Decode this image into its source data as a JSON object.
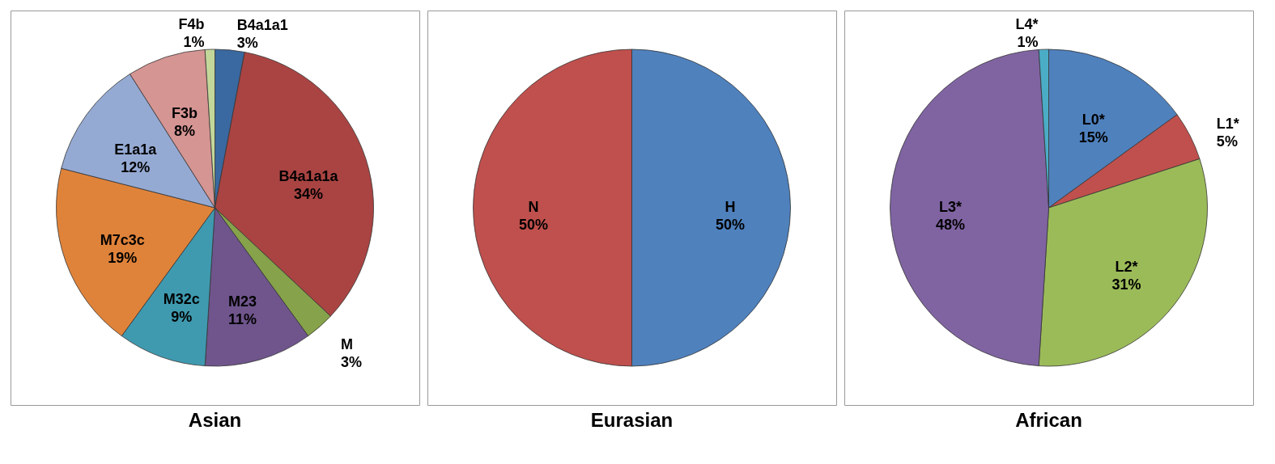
{
  "chart_data": [
    {
      "type": "pie",
      "title": "Asian",
      "categories": [
        "B4a1a1",
        "B4a1a1a",
        "M",
        "M23",
        "M32c",
        "M7c3c",
        "E1a1a",
        "F3b",
        "F4b"
      ],
      "values": [
        3,
        34,
        3,
        11,
        9,
        19,
        12,
        8,
        1
      ],
      "value_labels": [
        "3%",
        "34%",
        "3%",
        "11%",
        "9%",
        "19%",
        "12%",
        "8%",
        "1%"
      ],
      "colors": [
        "#3a68a0",
        "#a94442",
        "#86a24a",
        "#6f558c",
        "#3f9ab0",
        "#e0833a",
        "#95aad3",
        "#d59593",
        "#c4d79b"
      ]
    },
    {
      "type": "pie",
      "title": "Eurasian",
      "categories": [
        "H",
        "N"
      ],
      "values": [
        50,
        50
      ],
      "value_labels": [
        "50%",
        "50%"
      ],
      "colors": [
        "#4f81bd",
        "#c0504d"
      ]
    },
    {
      "type": "pie",
      "title": "African",
      "categories": [
        "L0*",
        "L1*",
        "L2*",
        "L3*",
        "L4*"
      ],
      "values": [
        15,
        5,
        31,
        48,
        1
      ],
      "value_labels": [
        "15%",
        "5%",
        "31%",
        "48%",
        "1%"
      ],
      "colors": [
        "#4f81bd",
        "#c0504d",
        "#9bbb59",
        "#8064a2",
        "#4bacc6"
      ]
    }
  ]
}
